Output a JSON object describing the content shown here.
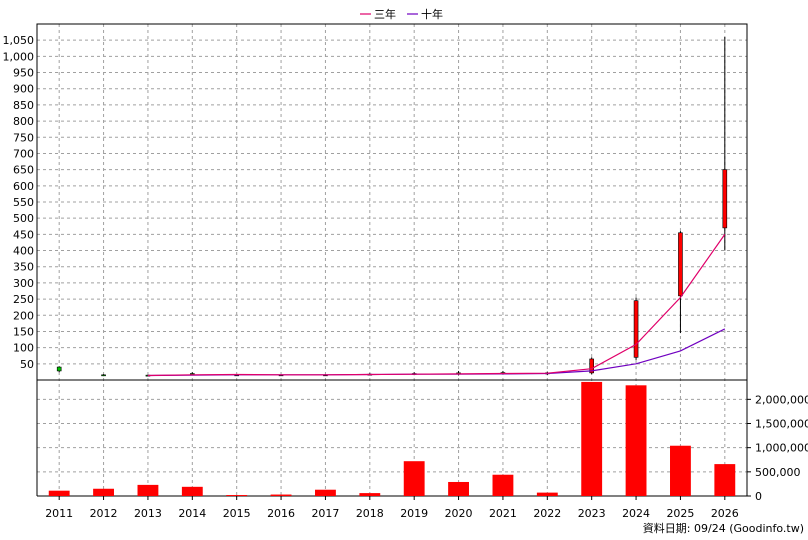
{
  "chart_data": {
    "type": "candlestick+bar",
    "legend": [
      {
        "name": "三年",
        "color": "#e0006a"
      },
      {
        "name": "十年",
        "color": "#7000c0"
      }
    ],
    "legend_position": "top-center",
    "grid": true,
    "categories": [
      "2011",
      "2012",
      "2013",
      "2014",
      "2015",
      "2016",
      "2017",
      "2018",
      "2019",
      "2020",
      "2021",
      "2022",
      "2023",
      "2024",
      "2025",
      "2026"
    ],
    "price": {
      "ylim": [
        0,
        1100
      ],
      "ticks": [
        50,
        100,
        150,
        200,
        250,
        300,
        350,
        400,
        450,
        500,
        550,
        600,
        650,
        700,
        750,
        800,
        850,
        900,
        950,
        "1,000",
        "1,050"
      ],
      "candles": [
        {
          "open": 28,
          "close": 40,
          "high": 42,
          "low": 24,
          "color": "#00c000"
        },
        {
          "open": 14,
          "close": 16,
          "high": 18,
          "low": 12,
          "color": "#00c000"
        },
        {
          "open": 13,
          "close": 15,
          "high": 16,
          "low": 12,
          "color": "#00c000"
        },
        {
          "open": 17,
          "close": 20,
          "high": 24,
          "low": 14,
          "color": "#00c000"
        },
        {
          "open": 15,
          "close": 16,
          "high": 18,
          "low": 13,
          "color": "#00c000"
        },
        {
          "open": 15,
          "close": 16,
          "high": 17,
          "low": 13,
          "color": "#00c000"
        },
        {
          "open": 15,
          "close": 16,
          "high": 18,
          "low": 13,
          "color": "#00c000"
        },
        {
          "open": 17,
          "close": 18,
          "high": 21,
          "low": 15,
          "color": "#00c000"
        },
        {
          "open": 18,
          "close": 20,
          "high": 24,
          "low": 15,
          "color": "#00c000"
        },
        {
          "open": 18,
          "close": 22,
          "high": 28,
          "low": 14,
          "color": "#00c000"
        },
        {
          "open": 21,
          "close": 23,
          "high": 28,
          "low": 17,
          "color": "#00c000"
        },
        {
          "open": 19,
          "close": 22,
          "high": 26,
          "low": 15,
          "color": "#00c000"
        },
        {
          "open": 22,
          "close": 65,
          "high": 70,
          "low": 18,
          "color": "#ff0000"
        },
        {
          "open": 70,
          "close": 245,
          "high": 255,
          "low": 62,
          "color": "#ff0000"
        },
        {
          "open": 260,
          "close": 455,
          "high": 460,
          "low": 145,
          "color": "#ff0000"
        },
        {
          "open": 470,
          "close": 650,
          "high": 1060,
          "low": 400,
          "color": "#ff0000"
        }
      ],
      "ma3": [
        null,
        null,
        14,
        16,
        17,
        16,
        16,
        17,
        18,
        19,
        20,
        21,
        35,
        110,
        255,
        450
      ],
      "ma10": [
        null,
        null,
        14,
        15,
        16,
        16,
        16,
        17,
        18,
        18,
        19,
        20,
        28,
        50,
        90,
        158
      ]
    },
    "volume": {
      "ylim": [
        0,
        2400000
      ],
      "ticks": [
        0,
        500000,
        1000000,
        1500000,
        2000000
      ],
      "tick_labels": [
        "0",
        "500,000",
        "1,000,000",
        "1,500,000",
        "2,000,000"
      ],
      "values": [
        110000,
        150000,
        230000,
        190000,
        20000,
        30000,
        130000,
        60000,
        720000,
        290000,
        440000,
        70000,
        2360000,
        2290000,
        1040000,
        660000
      ],
      "color": "#ff0000"
    },
    "annotation": "資料日期: 09/24  (Goodinfo.tw)"
  }
}
